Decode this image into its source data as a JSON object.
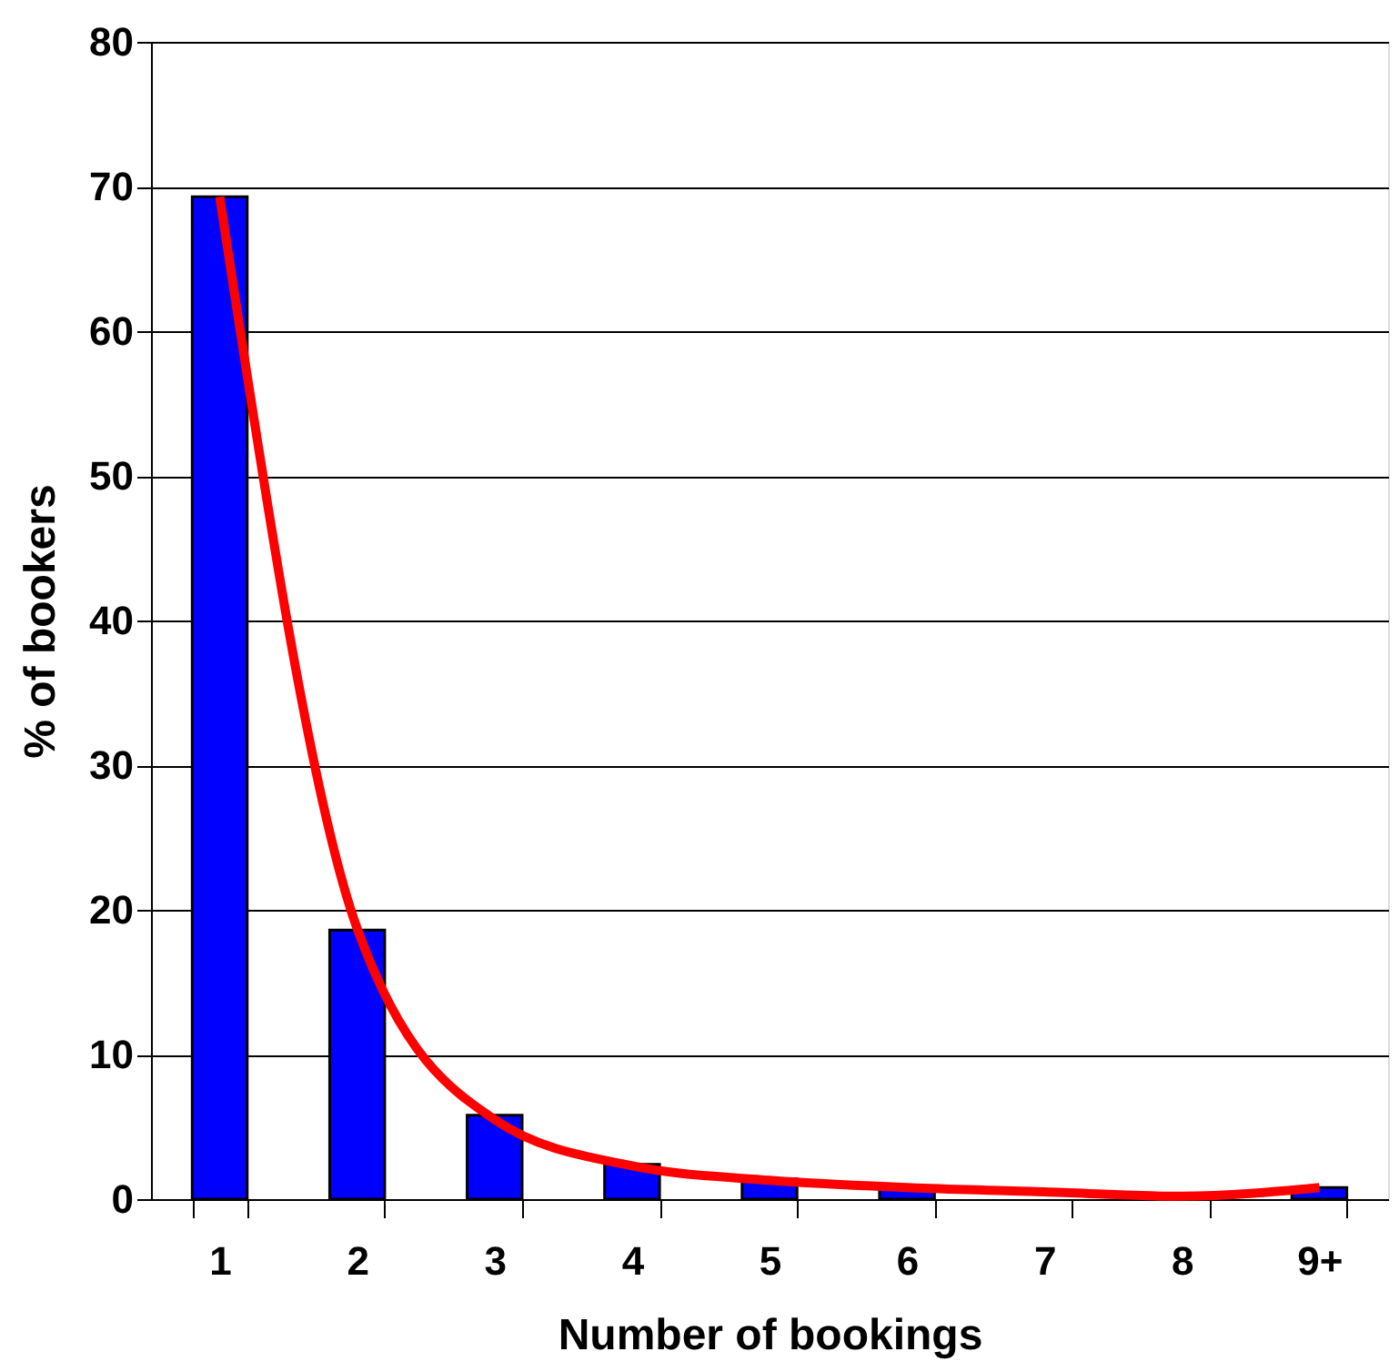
{
  "chart_data": {
    "type": "bar",
    "xlabel": "Number of bookings",
    "ylabel": "% of bookers",
    "categories": [
      "1",
      "2",
      "3",
      "4",
      "5",
      "6",
      "7",
      "8",
      "9+"
    ],
    "series": [
      {
        "color": "#0000ff",
        "values": [
          69.3,
          18.6,
          5.8,
          2.4,
          1.4,
          0.9,
          null,
          null,
          0.8
        ]
      },
      {
        "type": "line",
        "color": "#ff0000",
        "values": [
          69.3,
          18.7,
          5.5,
          2.3,
          1.3,
          0.8,
          0.5,
          0.2,
          0.8
        ],
        "marker": "none",
        "line_style": "solid"
      }
    ],
    "ylim": [
      0,
      80
    ],
    "yticks": [
      0,
      10,
      20,
      30,
      40,
      50,
      60,
      70,
      80
    ],
    "grid": "y"
  }
}
